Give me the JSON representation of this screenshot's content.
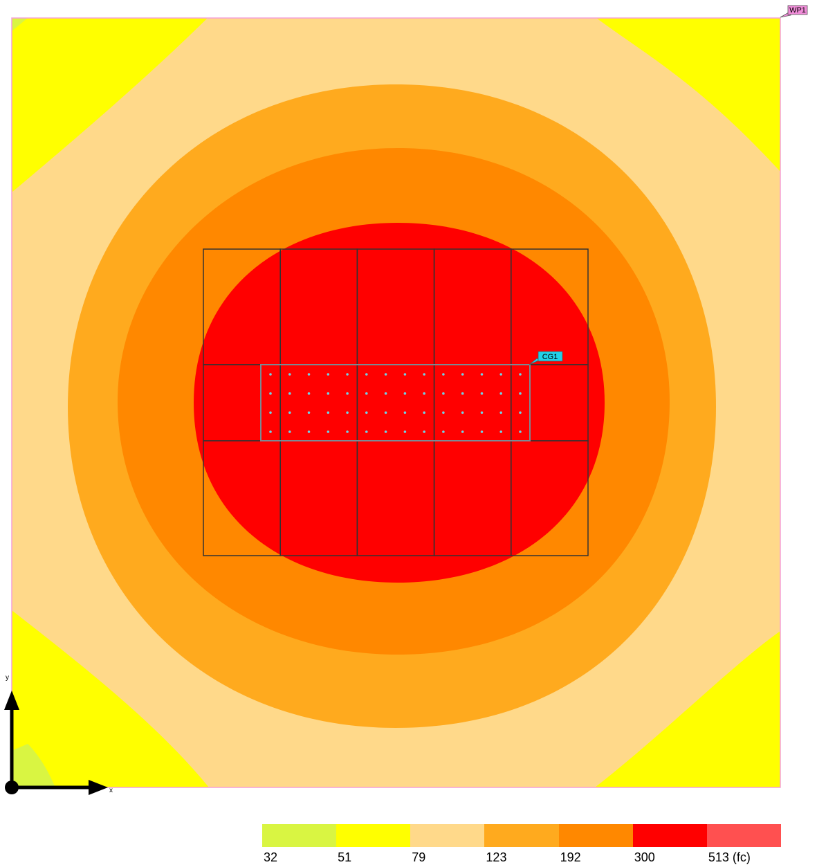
{
  "chart_data": {
    "type": "heatmap",
    "unit": "(fc)",
    "levels": [
      {
        "value": 32,
        "label": "32",
        "color": "#d9f542"
      },
      {
        "value": 51,
        "label": "51",
        "color": "#ffff00"
      },
      {
        "value": 79,
        "label": "79",
        "color": "#ffd98a"
      },
      {
        "value": 123,
        "label": "123",
        "color": "#ffaa1e"
      },
      {
        "value": 192,
        "label": "192",
        "color": "#ff8800"
      },
      {
        "value": 300,
        "label": "300",
        "color": "#ff0000"
      },
      {
        "value": 513,
        "label": "513 (fc)",
        "color": "#ff5050"
      }
    ],
    "axes": {
      "x_label": "x",
      "y_label": "y"
    },
    "workplane_tag": "WP1",
    "calc_grid_tag": "CG1",
    "calc_grid": {
      "rows": 4,
      "cols": 14
    },
    "luminaire_grid": {
      "rows": 3,
      "cols": 5
    },
    "border_color": "#f5a0d8",
    "calc_grid_color": "#6fd3e6",
    "tag_wp_color": "#f08cd8",
    "tag_cg_color": "#20d0e8"
  }
}
